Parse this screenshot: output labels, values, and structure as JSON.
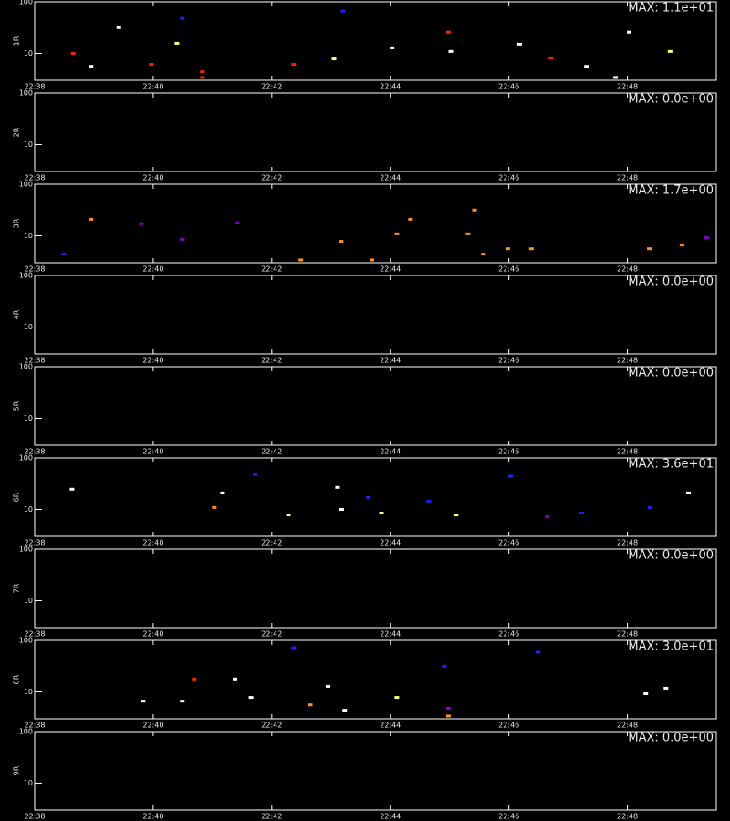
{
  "chart_data": [
    {
      "type": "scatter",
      "ylabel": "1R",
      "annotation": "MAX: 1.1e+01",
      "log_y": true,
      "xlim": [
        1358,
        1369.5
      ],
      "ylim": [
        3,
        100
      ],
      "xticks": [
        {
          "value": 1358,
          "label": "22:38"
        },
        {
          "value": 1360,
          "label": "22:40"
        },
        {
          "value": 1362,
          "label": "22:42"
        },
        {
          "value": 1364,
          "label": "22:44"
        },
        {
          "value": 1366,
          "label": "22:46"
        },
        {
          "value": 1368,
          "label": "22:48"
        }
      ],
      "yticks": [
        10,
        100
      ],
      "x": [
        1358.65,
        1358.95,
        1359.97,
        1360.83,
        1360.83,
        1362.37,
        1360.4,
        1364.03,
        1363.05,
        1365.02,
        1366.71,
        1367.31,
        1367.8,
        1368.72,
        1359.42,
        1360.49,
        1363.2,
        1364.98,
        1366.18,
        1368.03
      ],
      "y": [
        10,
        5.6,
        6.1,
        4.4,
        3.4,
        6.1,
        15.7,
        12.8,
        7.8,
        10.9,
        8.1,
        5.6,
        3.4,
        10.9,
        31.6,
        47.7,
        66.2,
        25.8,
        15.1,
        25.8
      ],
      "colors": [
        "#ff2000",
        "#ffffff",
        "#ff2000",
        "#ff2000",
        "#ff2000",
        "#ff2000",
        "#ffff80",
        "#ffffff",
        "#ffff80",
        "#ffffff",
        "#ff2000",
        "#ffffff",
        "#ffffff",
        "#ffff80",
        "#ffffff",
        "#2020ff",
        "#2020ff",
        "#ff2000",
        "#ffffff",
        "#ffffff"
      ]
    },
    {
      "type": "scatter",
      "ylabel": "2R",
      "annotation": "MAX: 0.0e+00",
      "log_y": true,
      "xlim": [
        1358,
        1369.5
      ],
      "ylim": [
        3,
        100
      ],
      "xticks": [
        {
          "value": 1358,
          "label": "22:38"
        },
        {
          "value": 1360,
          "label": "22:40"
        },
        {
          "value": 1362,
          "label": "22:42"
        },
        {
          "value": 1364,
          "label": "22:44"
        },
        {
          "value": 1366,
          "label": "22:46"
        },
        {
          "value": 1368,
          "label": "22:48"
        }
      ],
      "yticks": [
        10,
        100
      ],
      "x": [],
      "y": [],
      "colors": []
    },
    {
      "type": "scatter",
      "ylabel": "3R",
      "annotation": "MAX: 1.7e+00",
      "log_y": true,
      "xlim": [
        1358,
        1369.5
      ],
      "ylim": [
        3,
        100
      ],
      "xticks": [
        {
          "value": 1358,
          "label": "22:38"
        },
        {
          "value": 1360,
          "label": "22:40"
        },
        {
          "value": 1362,
          "label": "22:42"
        },
        {
          "value": 1364,
          "label": "22:44"
        },
        {
          "value": 1366,
          "label": "22:46"
        },
        {
          "value": 1368,
          "label": "22:48"
        }
      ],
      "yticks": [
        10,
        100
      ],
      "x": [
        1358.49,
        1360.49,
        1362.49,
        1363.69,
        1363.17,
        1364.11,
        1365.31,
        1365.57,
        1365.98,
        1366.38,
        1368.37,
        1368.92,
        1358.95,
        1359.8,
        1361.42,
        1364.34,
        1369.34,
        1365.42
      ],
      "y": [
        4.4,
        8.5,
        3.4,
        3.4,
        7.8,
        10.9,
        10.9,
        4.4,
        5.6,
        5.6,
        5.6,
        6.6,
        20.9,
        17.1,
        17.8,
        20.9,
        9.2,
        31.6
      ],
      "colors": [
        "#2020ff",
        "#8000c0",
        "#ff9020",
        "#ff9020",
        "#ff9020",
        "#ff9020",
        "#ff9020",
        "#ff9020",
        "#ff9020",
        "#ff9020",
        "#ff9020",
        "#ff9020",
        "#ff9020",
        "#8000c0",
        "#8000c0",
        "#ff9020",
        "#8000c0",
        "#ff9020"
      ]
    },
    {
      "type": "scatter",
      "ylabel": "4R",
      "annotation": "MAX: 0.0e+00",
      "log_y": true,
      "xlim": [
        1358,
        1369.5
      ],
      "ylim": [
        3,
        100
      ],
      "xticks": [
        {
          "value": 1358,
          "label": "22:38"
        },
        {
          "value": 1360,
          "label": "22:40"
        },
        {
          "value": 1362,
          "label": "22:42"
        },
        {
          "value": 1364,
          "label": "22:44"
        },
        {
          "value": 1366,
          "label": "22:46"
        },
        {
          "value": 1368,
          "label": "22:48"
        }
      ],
      "yticks": [
        10,
        100
      ],
      "x": [],
      "y": [],
      "colors": []
    },
    {
      "type": "scatter",
      "ylabel": "5R",
      "annotation": "MAX: 0.0e+00",
      "log_y": true,
      "xlim": [
        1358,
        1369.5
      ],
      "ylim": [
        3,
        100
      ],
      "xticks": [
        {
          "value": 1358,
          "label": "22:38"
        },
        {
          "value": 1360,
          "label": "22:40"
        },
        {
          "value": 1362,
          "label": "22:42"
        },
        {
          "value": 1364,
          "label": "22:44"
        },
        {
          "value": 1366,
          "label": "22:46"
        },
        {
          "value": 1368,
          "label": "22:48"
        }
      ],
      "yticks": [
        10,
        100
      ],
      "x": [],
      "y": [],
      "colors": []
    },
    {
      "type": "scatter",
      "ylabel": "6R",
      "annotation": "MAX: 3.6e+01",
      "log_y": true,
      "xlim": [
        1358,
        1369.5
      ],
      "ylim": [
        3,
        100
      ],
      "xticks": [
        {
          "value": 1358,
          "label": "22:38"
        },
        {
          "value": 1360,
          "label": "22:40"
        },
        {
          "value": 1362,
          "label": "22:42"
        },
        {
          "value": 1364,
          "label": "22:44"
        },
        {
          "value": 1366,
          "label": "22:46"
        },
        {
          "value": 1368,
          "label": "22:48"
        }
      ],
      "yticks": [
        10,
        100
      ],
      "x": [
        1361.03,
        1361.17,
        1362.28,
        1363.18,
        1363.85,
        1365.11,
        1363.63,
        1364.65,
        1366.65,
        1367.23,
        1368.38,
        1358.63,
        1363.11,
        1361.72,
        1366.03,
        1369.03
      ],
      "y": [
        10.9,
        20.9,
        7.8,
        10,
        8.5,
        7.8,
        17.1,
        14.5,
        7.2,
        8.5,
        10.9,
        24.7,
        26.8,
        47.7,
        44.0,
        20.9
      ],
      "colors": [
        "#ff9020",
        "#ffffff",
        "#ffff80",
        "#ffffff",
        "#ffff80",
        "#ffff80",
        "#2020ff",
        "#2020ff",
        "#8000c0",
        "#2020ff",
        "#2020ff",
        "#ffffff",
        "#ffffff",
        "#2020ff",
        "#2020ff",
        "#ffffff"
      ]
    },
    {
      "type": "scatter",
      "ylabel": "7R",
      "annotation": "MAX: 0.0e+00",
      "log_y": true,
      "xlim": [
        1358,
        1369.5
      ],
      "ylim": [
        3,
        100
      ],
      "xticks": [
        {
          "value": 1358,
          "label": "22:38"
        },
        {
          "value": 1360,
          "label": "22:40"
        },
        {
          "value": 1362,
          "label": "22:42"
        },
        {
          "value": 1364,
          "label": "22:44"
        },
        {
          "value": 1366,
          "label": "22:46"
        },
        {
          "value": 1368,
          "label": "22:48"
        }
      ],
      "yticks": [
        10,
        100
      ],
      "x": [],
      "y": [],
      "colors": []
    },
    {
      "type": "scatter",
      "ylabel": "8R",
      "annotation": "MAX: 3.0e+01",
      "log_y": true,
      "xlim": [
        1358,
        1369.5
      ],
      "ylim": [
        3,
        100
      ],
      "xticks": [
        {
          "value": 1358,
          "label": "22:38"
        },
        {
          "value": 1360,
          "label": "22:40"
        },
        {
          "value": 1362,
          "label": "22:42"
        },
        {
          "value": 1364,
          "label": "22:44"
        },
        {
          "value": 1366,
          "label": "22:46"
        },
        {
          "value": 1368,
          "label": "22:48"
        }
      ],
      "yticks": [
        10,
        100
      ],
      "x": [
        1359.83,
        1360.49,
        1360.69,
        1361.65,
        1362.65,
        1363.23,
        1364.11,
        1364.98,
        1364.98,
        1368.31,
        1368.65,
        1361.38,
        1362.95,
        1364.91,
        1362.37,
        1366.49
      ],
      "y": [
        6.6,
        6.6,
        17.8,
        7.8,
        5.6,
        4.4,
        7.8,
        3.4,
        4.8,
        9.2,
        11.8,
        17.8,
        12.8,
        31.6,
        72.1,
        58.6
      ],
      "colors": [
        "#ffffff",
        "#ffffff",
        "#ff2000",
        "#ffffff",
        "#ff9020",
        "#ffffff",
        "#ffff80",
        "#ff9020",
        "#8000c0",
        "#ffffff",
        "#ffffff",
        "#ffffff",
        "#ffffff",
        "#2020ff",
        "#2020ff",
        "#2020ff"
      ]
    },
    {
      "type": "scatter",
      "ylabel": "9R",
      "annotation": "MAX: 0.0e+00",
      "log_y": true,
      "xlim": [
        1358,
        1369.5
      ],
      "ylim": [
        3,
        100
      ],
      "xticks": [
        {
          "value": 1358,
          "label": "22:38"
        },
        {
          "value": 1360,
          "label": "22:40"
        },
        {
          "value": 1362,
          "label": "22:42"
        },
        {
          "value": 1364,
          "label": "22:44"
        },
        {
          "value": 1366,
          "label": "22:46"
        },
        {
          "value": 1368,
          "label": "22:48"
        }
      ],
      "yticks": [
        10,
        100
      ],
      "x": [],
      "y": [],
      "colors": []
    }
  ]
}
